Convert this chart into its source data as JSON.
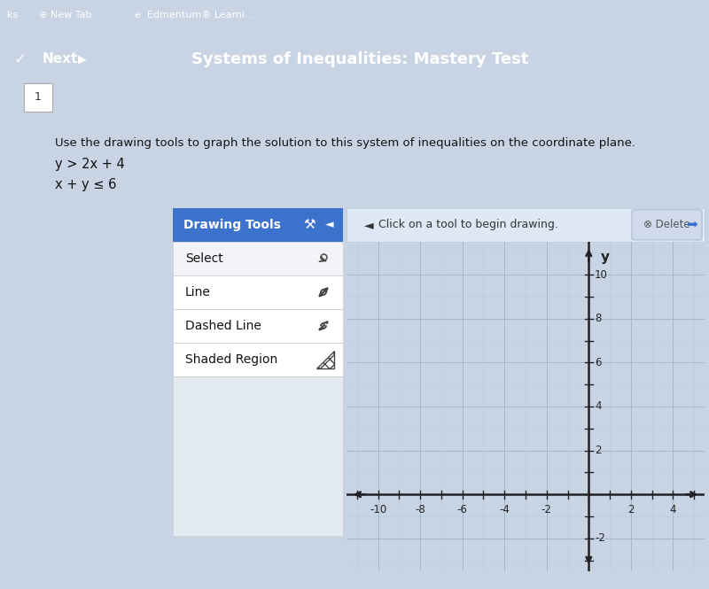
{
  "bg_outer": "#c8d4e4",
  "bg_browser_tab": "#3a72cc",
  "bg_nav_bar": "#3a72cc",
  "bg_content": "#e8eef6",
  "bg_tools_header": "#3a72cc",
  "bg_tools_panel": "#f0f4f8",
  "bg_tools_row_even": "#e8eef6",
  "bg_tools_row_odd": "#ffffff",
  "bg_grid_area": "#dce8f2",
  "bg_instruction": "#e8eef6",
  "bg_delete_btn": "#d8e0ec",
  "title_text": "Systems of Inequalities: Mastery Test",
  "problem_line1": "Use the drawing tools to graph the solution to this system of inequalities on the coordinate plane.",
  "problem_line2": "y > 2x + 4",
  "problem_line3": "x + y ≤ 6",
  "drawing_tools_header": "Drawing Tools",
  "tool_items": [
    "Select",
    "Line",
    "Dashed Line",
    "Shaded Region"
  ],
  "instruction_text": "Click on a tool to begin drawing.",
  "grid_bg": "#dce8f0",
  "grid_line_color": "#b8ccd8",
  "grid_line_major_color": "#a0b8cc",
  "axis_color": "#222222",
  "tick_label_color": "#222222",
  "x_tick_labels": [
    -10,
    -8,
    -6,
    -4,
    -2,
    2,
    4
  ],
  "y_tick_labels": [
    -2,
    2,
    4,
    6,
    8,
    10
  ],
  "xlim": [
    -11.5,
    5.5
  ],
  "ylim": [
    -3.5,
    11.5
  ],
  "figsize": [
    8.0,
    6.65
  ],
  "dpi": 100
}
